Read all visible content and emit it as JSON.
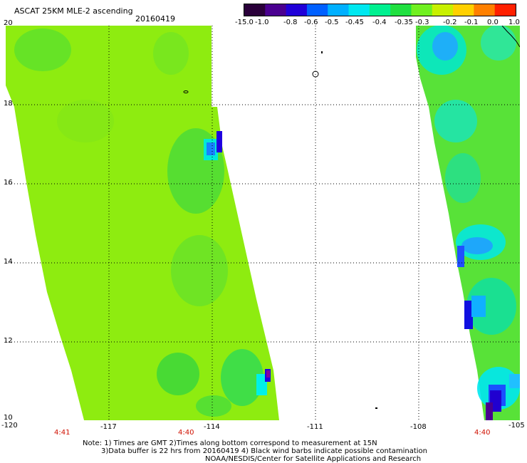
{
  "title": "ASCAT 25KM MLE-2 ascending",
  "date": "20160419",
  "colorbar": {
    "labels": [
      "-15.0",
      "-1.0",
      "-0.8",
      "-0.6",
      "-0.5",
      "-0.45",
      "-0.4",
      "-0.35",
      "-0.3",
      "-0.2",
      "-0.1",
      "0.0",
      "1.0"
    ],
    "colors": [
      "#2a003a",
      "#4a0090",
      "#2000d8",
      "#0060ff",
      "#00b0ff",
      "#00e8f0",
      "#00f090",
      "#20e040",
      "#70f020",
      "#c8f000",
      "#ffd000",
      "#ff8000",
      "#ff2000"
    ]
  },
  "axes": {
    "x_ticks": [
      "-120",
      "-117",
      "-114",
      "-111",
      "-108",
      "-105"
    ],
    "y_ticks": [
      "20",
      "18",
      "16",
      "14",
      "12",
      "10"
    ],
    "lon_range": [
      -120,
      -105
    ],
    "lat_range": [
      10,
      20
    ]
  },
  "pass_times": [
    "4:41",
    "4:40",
    "4:40"
  ],
  "notes": [
    "Note: 1) Times are GMT 2)Times along bottom correspond to measurement at 15N",
    "3)Data buffer is 22 hrs from 20160419 4) Black wind barbs indicate possible contamination",
    "NOAA/NESDIS/Center for Satellite Applications and Research"
  ]
}
